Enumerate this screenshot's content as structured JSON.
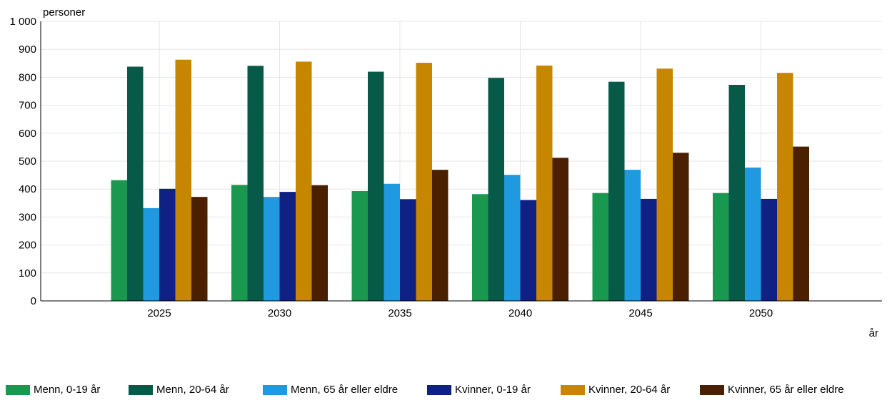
{
  "chart_data": {
    "type": "bar",
    "ylabel": "personer",
    "xlabel": "år",
    "ylim": [
      0,
      1000
    ],
    "yticks": [
      "0",
      "100",
      "200",
      "300",
      "400",
      "500",
      "600",
      "700",
      "800",
      "900",
      "1 000"
    ],
    "categories": [
      "2025",
      "2030",
      "2035",
      "2040",
      "2045",
      "2050"
    ],
    "grid": true,
    "legend_position": "bottom",
    "series": [
      {
        "name": "Menn, 0-19 år",
        "color": "#1a9850",
        "values": [
          432,
          415,
          393,
          382,
          386,
          386
        ]
      },
      {
        "name": "Menn, 20-64 år",
        "color": "#075a47",
        "values": [
          838,
          841,
          820,
          798,
          784,
          773
        ]
      },
      {
        "name": "Menn, 65 år eller eldre",
        "color": "#1f9ae0",
        "values": [
          332,
          372,
          419,
          451,
          469,
          477
        ]
      },
      {
        "name": "Kvinner, 0-19 år",
        "color": "#102184",
        "values": [
          401,
          390,
          364,
          361,
          365,
          365
        ]
      },
      {
        "name": "Kvinner, 20-64 år",
        "color": "#c78600",
        "values": [
          863,
          856,
          852,
          842,
          831,
          816
        ]
      },
      {
        "name": "Kvinner, 65 år eller eldre",
        "color": "#4a2000",
        "values": [
          372,
          414,
          469,
          512,
          530,
          552
        ]
      }
    ]
  }
}
